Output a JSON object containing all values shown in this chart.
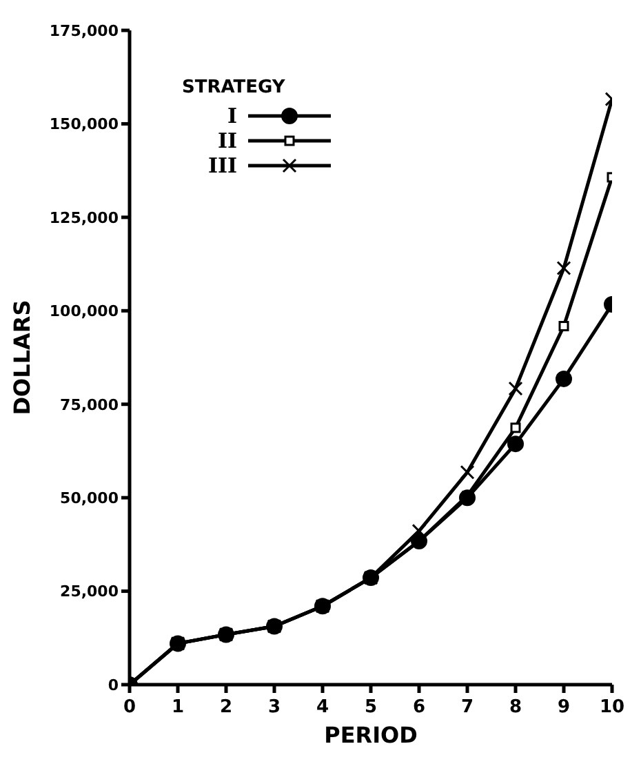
{
  "chart_data": {
    "type": "line",
    "xlabel": "PERIOD",
    "ylabel": "DOLLARS",
    "legend_title": "STRATEGY",
    "legend": "top left",
    "grid": false,
    "x": [
      0,
      1,
      2,
      3,
      4,
      5,
      6,
      7,
      8,
      9,
      10
    ],
    "xlim": [
      0,
      10
    ],
    "xticks": [
      0,
      1,
      2,
      3,
      4,
      5,
      6,
      7,
      8,
      9,
      10
    ],
    "ylim": [
      0,
      175000
    ],
    "yticks": [
      {
        "value": 0,
        "label": "0"
      },
      {
        "value": 25000,
        "label": "25,000"
      },
      {
        "value": 50000,
        "label": "50,000"
      },
      {
        "value": 75000,
        "label": "75,000"
      },
      {
        "value": 100000,
        "label": "100,000"
      },
      {
        "value": 125000,
        "label": "125,000"
      },
      {
        "value": 150000,
        "label": "150,000"
      },
      {
        "value": 175000,
        "label": "175,000"
      }
    ],
    "series": [
      {
        "name": "I",
        "color": "#000000",
        "marker": "circle",
        "values": [
          0,
          11000,
          13400,
          15600,
          21000,
          28600,
          38400,
          50000,
          64400,
          81800,
          101700
        ]
      },
      {
        "name": "II",
        "color": "#000000",
        "marker": "square",
        "values": [
          0,
          11000,
          13400,
          15600,
          21000,
          28600,
          38400,
          50500,
          68700,
          95900,
          135700
        ]
      },
      {
        "name": "III",
        "color": "#000000",
        "marker": "cross",
        "values": [
          0,
          11000,
          13400,
          15600,
          21000,
          28600,
          41100,
          56800,
          79200,
          111400,
          156600
        ]
      }
    ]
  }
}
